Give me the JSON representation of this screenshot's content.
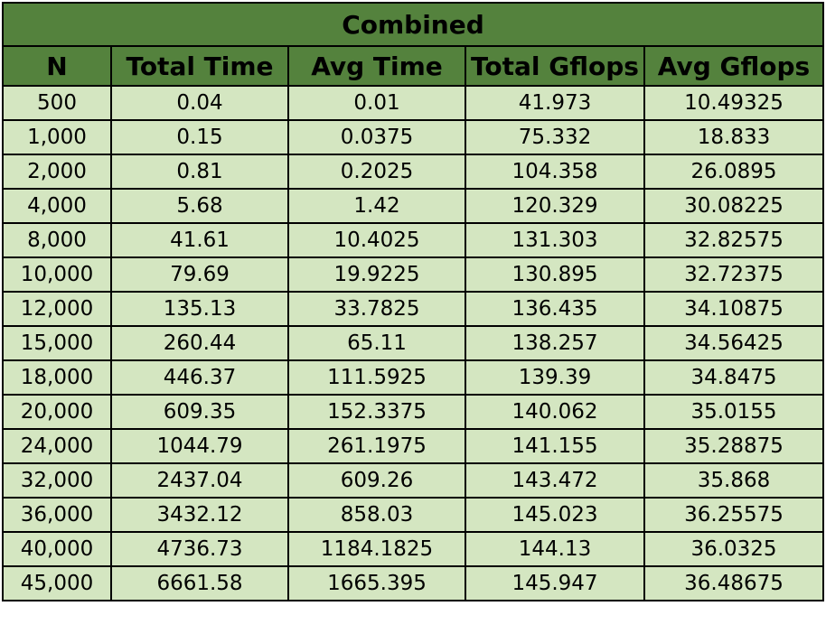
{
  "table": {
    "title": "Combined",
    "headers": [
      "N",
      "Total Time",
      "Avg Time",
      "Total Gflops",
      "Avg Gflops"
    ],
    "rows": [
      [
        "500",
        "0.04",
        "0.01",
        "41.973",
        "10.49325"
      ],
      [
        "1,000",
        "0.15",
        "0.0375",
        "75.332",
        "18.833"
      ],
      [
        "2,000",
        "0.81",
        "0.2025",
        "104.358",
        "26.0895"
      ],
      [
        "4,000",
        "5.68",
        "1.42",
        "120.329",
        "30.08225"
      ],
      [
        "8,000",
        "41.61",
        "10.4025",
        "131.303",
        "32.82575"
      ],
      [
        "10,000",
        "79.69",
        "19.9225",
        "130.895",
        "32.72375"
      ],
      [
        "12,000",
        "135.13",
        "33.7825",
        "136.435",
        "34.10875"
      ],
      [
        "15,000",
        "260.44",
        "65.11",
        "138.257",
        "34.56425"
      ],
      [
        "18,000",
        "446.37",
        "111.5925",
        "139.39",
        "34.8475"
      ],
      [
        "20,000",
        "609.35",
        "152.3375",
        "140.062",
        "35.0155"
      ],
      [
        "24,000",
        "1044.79",
        "261.1975",
        "141.155",
        "35.28875"
      ],
      [
        "32,000",
        "2437.04",
        "609.26",
        "143.472",
        "35.868"
      ],
      [
        "36,000",
        "3432.12",
        "858.03",
        "145.023",
        "36.25575"
      ],
      [
        "40,000",
        "4736.73",
        "1184.1825",
        "144.13",
        "36.0325"
      ],
      [
        "45,000",
        "6661.58",
        "1665.395",
        "145.947",
        "36.48675"
      ]
    ]
  },
  "colors": {
    "header_fill": "#54823d",
    "row_fill": "#d4e6c1",
    "border": "#000000"
  }
}
